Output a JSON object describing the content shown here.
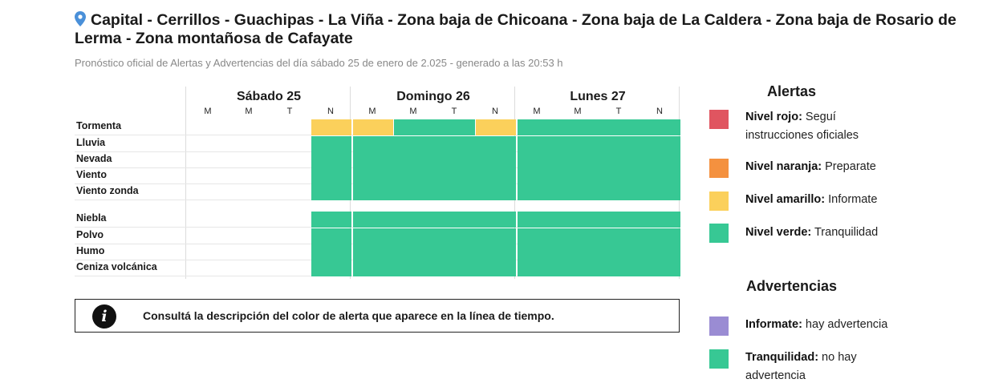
{
  "header": {
    "title": "Capital - Cerrillos - Guachipas - La Viña - Zona baja de Chicoana - Zona baja de La Caldera - Zona baja de Rosario de Lerma - Zona montañosa de Cafayate",
    "subtitle": "Pronóstico oficial de Alertas y Advertencias del día sábado 25 de enero de 2.025 - generado a las 20:53 h"
  },
  "timeline": {
    "days": [
      "Sábado 25",
      "Domingo 26",
      "Lunes 27"
    ],
    "shifts": [
      "M",
      "M",
      "T",
      "N"
    ],
    "colors": {
      "red": "#e05560",
      "orange": "#f4913f",
      "yellow": "#fbd05b",
      "green": "#37c894",
      "purple": "#9a8cd3",
      "none": "transparent"
    },
    "alert_rows": [
      {
        "label": "Tormenta",
        "levels": [
          "none",
          "none",
          "none",
          "yellow",
          "yellow",
          "green",
          "green",
          "yellow",
          "green",
          "green",
          "green",
          "green"
        ]
      },
      {
        "label": "Lluvia",
        "levels": [
          "none",
          "none",
          "none",
          "green",
          "green",
          "green",
          "green",
          "green",
          "green",
          "green",
          "green",
          "green"
        ]
      },
      {
        "label": "Nevada",
        "levels": [
          "none",
          "none",
          "none",
          "green",
          "green",
          "green",
          "green",
          "green",
          "green",
          "green",
          "green",
          "green"
        ]
      },
      {
        "label": "Viento",
        "levels": [
          "none",
          "none",
          "none",
          "green",
          "green",
          "green",
          "green",
          "green",
          "green",
          "green",
          "green",
          "green"
        ]
      },
      {
        "label": "Viento zonda",
        "levels": [
          "none",
          "none",
          "none",
          "green",
          "green",
          "green",
          "green",
          "green",
          "green",
          "green",
          "green",
          "green"
        ]
      }
    ],
    "warning_rows": [
      {
        "label": "Niebla",
        "levels": [
          "none",
          "none",
          "none",
          "green",
          "green",
          "green",
          "green",
          "green",
          "green",
          "green",
          "green",
          "green"
        ]
      },
      {
        "label": "Polvo",
        "levels": [
          "none",
          "none",
          "none",
          "green",
          "green",
          "green",
          "green",
          "green",
          "green",
          "green",
          "green",
          "green"
        ]
      },
      {
        "label": "Humo",
        "levels": [
          "none",
          "none",
          "none",
          "green",
          "green",
          "green",
          "green",
          "green",
          "green",
          "green",
          "green",
          "green"
        ]
      },
      {
        "label": "Ceniza volcánica",
        "levels": [
          "none",
          "none",
          "none",
          "green",
          "green",
          "green",
          "green",
          "green",
          "green",
          "green",
          "green",
          "green"
        ]
      }
    ]
  },
  "info": {
    "icon": "info-icon",
    "text": "Consultá la descripción del color de alerta que aparece en la línea de tiempo."
  },
  "legend": {
    "alerts_title": "Alertas",
    "alerts": [
      {
        "level": "Nivel rojo:",
        "desc": "Seguí instrucciones oficiales",
        "color": "#e05560"
      },
      {
        "level": "Nivel naranja:",
        "desc": "Preparate",
        "color": "#f4913f"
      },
      {
        "level": "Nivel amarillo:",
        "desc": "Informate",
        "color": "#fbd05b"
      },
      {
        "level": "Nivel verde:",
        "desc": "Tranquilidad",
        "color": "#37c894"
      }
    ],
    "warnings_title": "Advertencias",
    "warnings": [
      {
        "level": "Informate:",
        "desc": "hay advertencia",
        "color": "#9a8cd3"
      },
      {
        "level": "Tranquilidad:",
        "desc": "no hay advertencia",
        "color": "#37c894"
      }
    ]
  }
}
